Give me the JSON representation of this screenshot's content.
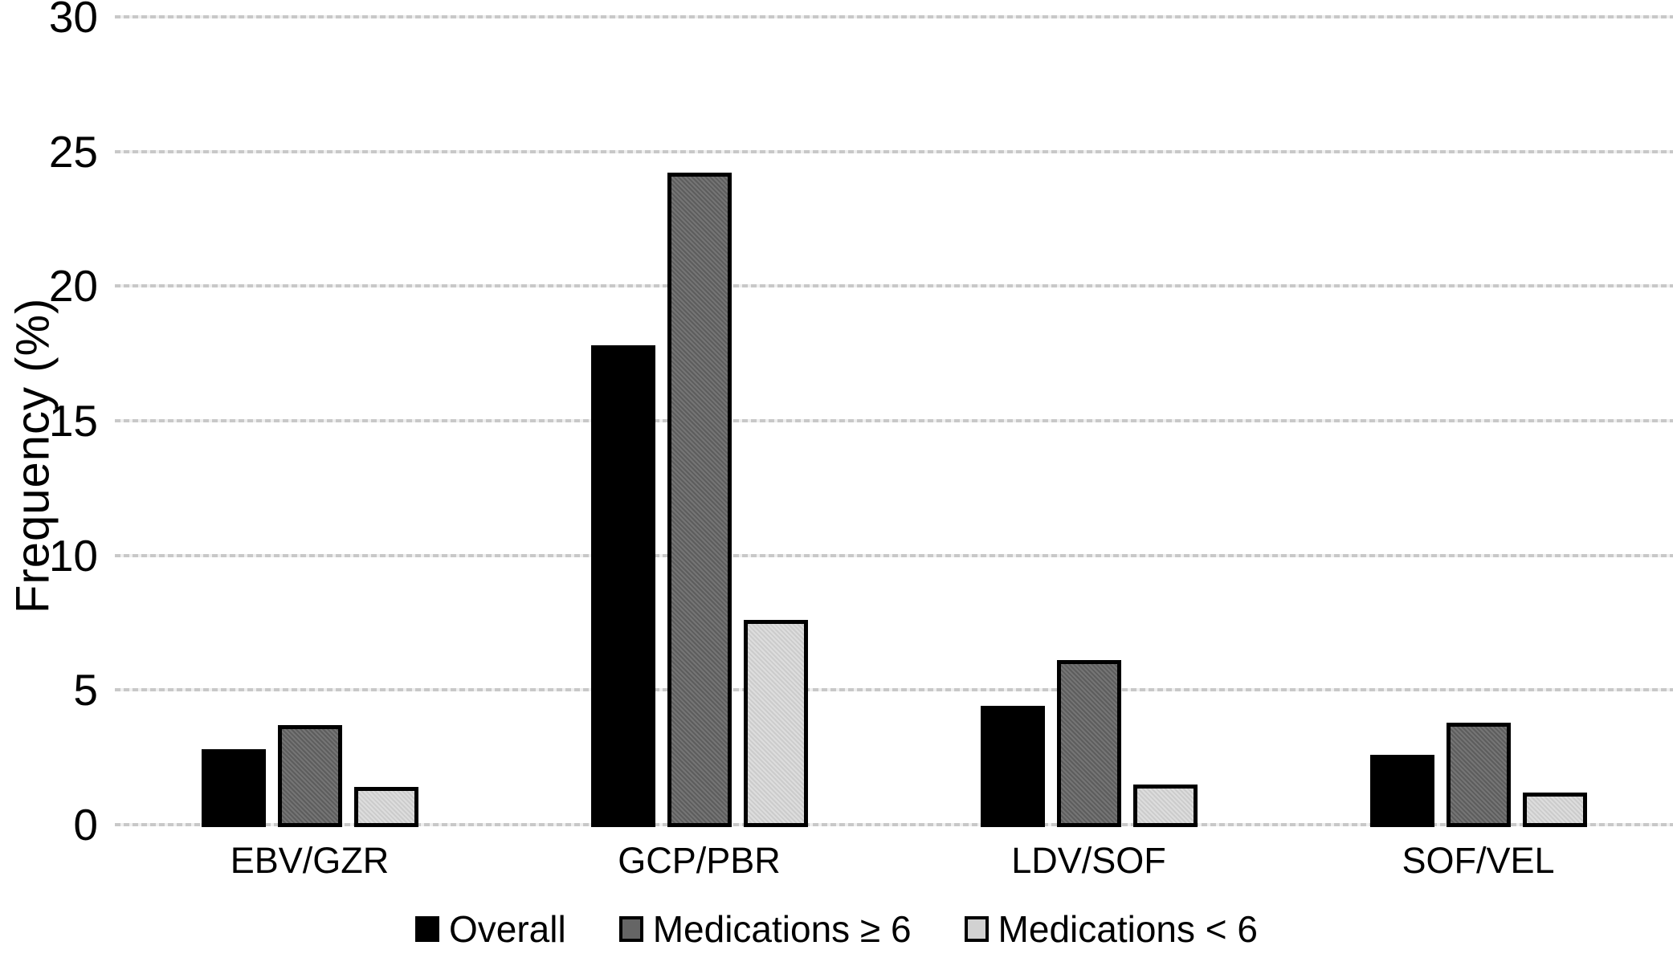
{
  "chart_data": {
    "type": "bar",
    "title": "",
    "ylabel": "Frequency (%)",
    "xlabel": "",
    "ylim": [
      0,
      30
    ],
    "yticks": [
      0,
      5,
      10,
      15,
      20,
      25,
      30
    ],
    "grid": true,
    "legend_position": "bottom",
    "categories": [
      "EBV/GZR",
      "GCP/PBR",
      "LDV/SOF",
      "SOF/VEL"
    ],
    "series": [
      {
        "name": "Overall",
        "color": "#000000",
        "values": [
          2.8,
          17.8,
          4.4,
          2.6
        ]
      },
      {
        "name": "Medications ≥ 6",
        "color": "#656565",
        "values": [
          3.7,
          24.2,
          6.1,
          3.8
        ]
      },
      {
        "name": "Medications < 6",
        "color": "#d2d2d2",
        "values": [
          1.4,
          7.6,
          1.5,
          1.2
        ]
      }
    ],
    "colors": {
      "background": "#ffffff",
      "gridline": "#c8c8c8",
      "bar_border": "#000000",
      "text": "#000000"
    }
  }
}
